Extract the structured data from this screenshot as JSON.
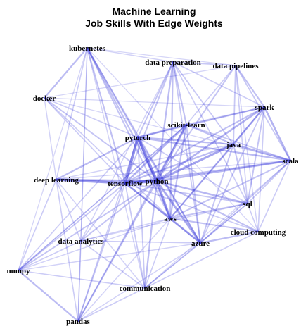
{
  "figure": {
    "title_line1": "Machine Learning",
    "title_line2": "Job Skills With Edge Weights"
  },
  "graph": {
    "edge_color": "#3b3bdb",
    "label_color": "#000000",
    "nodes": [
      {
        "id": "kubernetes",
        "label": "kubernetes"
      },
      {
        "id": "data-preparation",
        "label": "data preparation"
      },
      {
        "id": "data-pipelines",
        "label": "data pipelines"
      },
      {
        "id": "docker",
        "label": "docker"
      },
      {
        "id": "spark",
        "label": "spark"
      },
      {
        "id": "scikit-learn",
        "label": "scikit-learn"
      },
      {
        "id": "pytorch",
        "label": "pytorch"
      },
      {
        "id": "java",
        "label": "java"
      },
      {
        "id": "scala",
        "label": "scala"
      },
      {
        "id": "deep-learning",
        "label": "deep learning"
      },
      {
        "id": "tensorflow",
        "label": "tensorflow"
      },
      {
        "id": "python",
        "label": "python"
      },
      {
        "id": "sql",
        "label": "sql"
      },
      {
        "id": "aws",
        "label": "aws"
      },
      {
        "id": "cloud-computing",
        "label": "cloud computing"
      },
      {
        "id": "data-analytics",
        "label": "data analytics"
      },
      {
        "id": "azure",
        "label": "azure"
      },
      {
        "id": "numpy",
        "label": "numpy"
      },
      {
        "id": "communication",
        "label": "communication"
      },
      {
        "id": "pandas",
        "label": "pandas"
      }
    ],
    "edges": [
      {
        "source": "python",
        "target": "tensorflow",
        "weight": 1.0
      },
      {
        "source": "python",
        "target": "pytorch",
        "weight": 0.95
      },
      {
        "source": "tensorflow",
        "target": "pytorch",
        "weight": 0.95
      },
      {
        "source": "python",
        "target": "aws",
        "weight": 0.8
      },
      {
        "source": "python",
        "target": "java",
        "weight": 0.75
      },
      {
        "source": "python",
        "target": "scikit-learn",
        "weight": 0.75
      },
      {
        "source": "python",
        "target": "azure",
        "weight": 0.7
      },
      {
        "source": "python",
        "target": "scala",
        "weight": 0.55
      },
      {
        "source": "python",
        "target": "spark",
        "weight": 0.6
      },
      {
        "source": "python",
        "target": "sql",
        "weight": 0.55
      },
      {
        "source": "python",
        "target": "deep-learning",
        "weight": 0.6
      },
      {
        "source": "python",
        "target": "data-preparation",
        "weight": 0.5
      },
      {
        "source": "python",
        "target": "kubernetes",
        "weight": 0.45
      },
      {
        "source": "python",
        "target": "docker",
        "weight": 0.4
      },
      {
        "source": "python",
        "target": "communication",
        "weight": 0.5
      },
      {
        "source": "python",
        "target": "data-analytics",
        "weight": 0.4
      },
      {
        "source": "python",
        "target": "numpy",
        "weight": 0.4
      },
      {
        "source": "python",
        "target": "pandas",
        "weight": 0.45
      },
      {
        "source": "python",
        "target": "cloud-computing",
        "weight": 0.45
      },
      {
        "source": "python",
        "target": "data-pipelines",
        "weight": 0.4
      },
      {
        "source": "tensorflow",
        "target": "deep-learning",
        "weight": 0.85
      },
      {
        "source": "tensorflow",
        "target": "scikit-learn",
        "weight": 0.6
      },
      {
        "source": "tensorflow",
        "target": "aws",
        "weight": 0.55
      },
      {
        "source": "tensorflow",
        "target": "java",
        "weight": 0.5
      },
      {
        "source": "tensorflow",
        "target": "scala",
        "weight": 0.5
      },
      {
        "source": "tensorflow",
        "target": "azure",
        "weight": 0.45
      },
      {
        "source": "tensorflow",
        "target": "kubernetes",
        "weight": 0.45
      },
      {
        "source": "tensorflow",
        "target": "data-preparation",
        "weight": 0.4
      },
      {
        "source": "tensorflow",
        "target": "spark",
        "weight": 0.45
      },
      {
        "source": "tensorflow",
        "target": "sql",
        "weight": 0.35
      },
      {
        "source": "tensorflow",
        "target": "numpy",
        "weight": 0.35
      },
      {
        "source": "tensorflow",
        "target": "pandas",
        "weight": 0.35
      },
      {
        "source": "tensorflow",
        "target": "communication",
        "weight": 0.35
      },
      {
        "source": "tensorflow",
        "target": "data-analytics",
        "weight": 0.3
      },
      {
        "source": "tensorflow",
        "target": "docker",
        "weight": 0.3
      },
      {
        "source": "tensorflow",
        "target": "cloud-computing",
        "weight": 0.3
      },
      {
        "source": "pytorch",
        "target": "scikit-learn",
        "weight": 0.55
      },
      {
        "source": "pytorch",
        "target": "java",
        "weight": 0.5
      },
      {
        "source": "pytorch",
        "target": "scala",
        "weight": 0.5
      },
      {
        "source": "pytorch",
        "target": "aws",
        "weight": 0.5
      },
      {
        "source": "pytorch",
        "target": "azure",
        "weight": 0.5
      },
      {
        "source": "pytorch",
        "target": "kubernetes",
        "weight": 0.45
      },
      {
        "source": "pytorch",
        "target": "deep-learning",
        "weight": 0.5
      },
      {
        "source": "pytorch",
        "target": "data-preparation",
        "weight": 0.4
      },
      {
        "source": "pytorch",
        "target": "spark",
        "weight": 0.4
      },
      {
        "source": "pytorch",
        "target": "docker",
        "weight": 0.3
      },
      {
        "source": "pytorch",
        "target": "sql",
        "weight": 0.3
      },
      {
        "source": "pytorch",
        "target": "communication",
        "weight": 0.35
      },
      {
        "source": "pytorch",
        "target": "pandas",
        "weight": 0.3
      },
      {
        "source": "pytorch",
        "target": "numpy",
        "weight": 0.3
      },
      {
        "source": "scikit-learn",
        "target": "java",
        "weight": 0.45
      },
      {
        "source": "scikit-learn",
        "target": "aws",
        "weight": 0.45
      },
      {
        "source": "scikit-learn",
        "target": "spark",
        "weight": 0.4
      },
      {
        "source": "scikit-learn",
        "target": "data-preparation",
        "weight": 0.45
      },
      {
        "source": "scikit-learn",
        "target": "azure",
        "weight": 0.4
      },
      {
        "source": "scikit-learn",
        "target": "scala",
        "weight": 0.35
      },
      {
        "source": "scikit-learn",
        "target": "pandas",
        "weight": 0.35
      },
      {
        "source": "scikit-learn",
        "target": "numpy",
        "weight": 0.3
      },
      {
        "source": "scikit-learn",
        "target": "data-pipelines",
        "weight": 0.3
      },
      {
        "source": "java",
        "target": "scala",
        "weight": 0.6
      },
      {
        "source": "java",
        "target": "spark",
        "weight": 0.55
      },
      {
        "source": "java",
        "target": "aws",
        "weight": 0.45
      },
      {
        "source": "java",
        "target": "azure",
        "weight": 0.4
      },
      {
        "source": "java",
        "target": "sql",
        "weight": 0.4
      },
      {
        "source": "java",
        "target": "data-preparation",
        "weight": 0.35
      },
      {
        "source": "java",
        "target": "data-pipelines",
        "weight": 0.35
      },
      {
        "source": "spark",
        "target": "scala",
        "weight": 0.6
      },
      {
        "source": "spark",
        "target": "data-pipelines",
        "weight": 0.45
      },
      {
        "source": "spark",
        "target": "sql",
        "weight": 0.4
      },
      {
        "source": "spark",
        "target": "aws",
        "weight": 0.4
      },
      {
        "source": "spark",
        "target": "azure",
        "weight": 0.35
      },
      {
        "source": "spark",
        "target": "cloud-computing",
        "weight": 0.3
      },
      {
        "source": "scala",
        "target": "aws",
        "weight": 0.4
      },
      {
        "source": "scala",
        "target": "azure",
        "weight": 0.35
      },
      {
        "source": "scala",
        "target": "sql",
        "weight": 0.35
      },
      {
        "source": "scala",
        "target": "cloud-computing",
        "weight": 0.3
      },
      {
        "source": "aws",
        "target": "azure",
        "weight": 0.6
      },
      {
        "source": "aws",
        "target": "kubernetes",
        "weight": 0.4
      },
      {
        "source": "aws",
        "target": "sql",
        "weight": 0.4
      },
      {
        "source": "aws",
        "target": "cloud-computing",
        "weight": 0.45
      },
      {
        "source": "aws",
        "target": "data-preparation",
        "weight": 0.45
      },
      {
        "source": "aws",
        "target": "docker",
        "weight": 0.3
      },
      {
        "source": "aws",
        "target": "communication",
        "weight": 0.3
      },
      {
        "source": "azure",
        "target": "cloud-computing",
        "weight": 0.5
      },
      {
        "source": "azure",
        "target": "kubernetes",
        "weight": 0.35
      },
      {
        "source": "azure",
        "target": "data-preparation",
        "weight": 0.35
      },
      {
        "source": "azure",
        "target": "sql",
        "weight": 0.35
      },
      {
        "source": "azure",
        "target": "communication",
        "weight": 0.3
      },
      {
        "source": "kubernetes",
        "target": "docker",
        "weight": 0.5
      },
      {
        "source": "kubernetes",
        "target": "deep-learning",
        "weight": 0.3
      },
      {
        "source": "kubernetes",
        "target": "data-preparation",
        "weight": 0.25
      },
      {
        "source": "kubernetes",
        "target": "data-analytics",
        "weight": 0.25
      },
      {
        "source": "kubernetes",
        "target": "communication",
        "weight": 0.25
      },
      {
        "source": "docker",
        "target": "deep-learning",
        "weight": 0.25
      },
      {
        "source": "docker",
        "target": "data-pipelines",
        "weight": 0.2
      },
      {
        "source": "data-preparation",
        "target": "data-pipelines",
        "weight": 0.35
      },
      {
        "source": "data-preparation",
        "target": "spark",
        "weight": 0.3
      },
      {
        "source": "data-preparation",
        "target": "sql",
        "weight": 0.3
      },
      {
        "source": "data-preparation",
        "target": "data-analytics",
        "weight": 0.25
      },
      {
        "source": "deep-learning",
        "target": "data-analytics",
        "weight": 0.3
      },
      {
        "source": "deep-learning",
        "target": "numpy",
        "weight": 0.3
      },
      {
        "source": "deep-learning",
        "target": "pandas",
        "weight": 0.3
      },
      {
        "source": "deep-learning",
        "target": "communication",
        "weight": 0.25
      },
      {
        "source": "deep-learning",
        "target": "scala",
        "weight": 0.25
      },
      {
        "source": "deep-learning",
        "target": "java",
        "weight": 0.25
      },
      {
        "source": "data-analytics",
        "target": "numpy",
        "weight": 0.3
      },
      {
        "source": "data-analytics",
        "target": "pandas",
        "weight": 0.3
      },
      {
        "source": "data-analytics",
        "target": "communication",
        "weight": 0.3
      },
      {
        "source": "data-analytics",
        "target": "azure",
        "weight": 0.3
      },
      {
        "source": "data-analytics",
        "target": "aws",
        "weight": 0.25
      },
      {
        "source": "data-analytics",
        "target": "sql",
        "weight": 0.25
      },
      {
        "source": "numpy",
        "target": "pandas",
        "weight": 0.5
      },
      {
        "source": "numpy",
        "target": "communication",
        "weight": 0.3
      },
      {
        "source": "numpy",
        "target": "azure",
        "weight": 0.25
      },
      {
        "source": "numpy",
        "target": "aws",
        "weight": 0.25
      },
      {
        "source": "numpy",
        "target": "scikit-learn",
        "weight": 0.25
      },
      {
        "source": "pandas",
        "target": "communication",
        "weight": 0.3
      },
      {
        "source": "pandas",
        "target": "azure",
        "weight": 0.25
      },
      {
        "source": "pandas",
        "target": "aws",
        "weight": 0.25
      },
      {
        "source": "communication",
        "target": "cloud-computing",
        "weight": 0.3
      },
      {
        "source": "communication",
        "target": "sql",
        "weight": 0.25
      },
      {
        "source": "communication",
        "target": "scala",
        "weight": 0.2
      },
      {
        "source": "cloud-computing",
        "target": "sql",
        "weight": 0.3
      },
      {
        "source": "cloud-computing",
        "target": "data-pipelines",
        "weight": 0.25
      },
      {
        "source": "cloud-computing",
        "target": "kubernetes",
        "weight": 0.2
      },
      {
        "source": "sql",
        "target": "data-pipelines",
        "weight": 0.3
      },
      {
        "source": "data-pipelines",
        "target": "kubernetes",
        "weight": 0.2
      },
      {
        "source": "data-pipelines",
        "target": "scala",
        "weight": 0.35
      },
      {
        "source": "docker",
        "target": "scala",
        "weight": 0.2
      },
      {
        "source": "docker",
        "target": "spark",
        "weight": 0.2
      },
      {
        "source": "kubernetes",
        "target": "numpy",
        "weight": 0.2
      },
      {
        "source": "kubernetes",
        "target": "pandas",
        "weight": 0.2
      }
    ]
  }
}
